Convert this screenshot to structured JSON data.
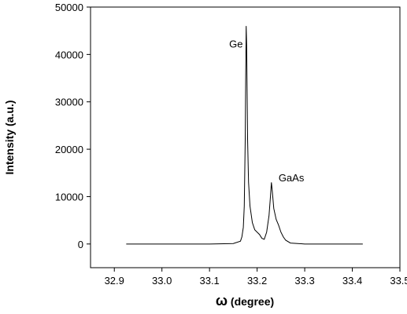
{
  "chart_data": {
    "type": "line",
    "xlabel_symbol": "ω",
    "xlabel_text": " (degree)",
    "ylabel": "Intensity (a.u.)",
    "xlim": [
      32.85,
      33.5
    ],
    "ylim": [
      -5000,
      50000
    ],
    "x_ticks": [
      32.9,
      33.0,
      33.1,
      33.2,
      33.3,
      33.4,
      33.5
    ],
    "x_tick_labels": [
      "32.9",
      "33.0",
      "33.1",
      "33.2",
      "33.3",
      "33.4",
      "33.5"
    ],
    "y_ticks": [
      0,
      10000,
      20000,
      30000,
      40000,
      50000
    ],
    "y_tick_labels": [
      "0",
      "10000",
      "20000",
      "30000",
      "40000",
      "50000"
    ],
    "grid": false,
    "annotations": [
      {
        "text": "Ge",
        "x": 33.17,
        "y": 41500
      },
      {
        "text": "GaAs",
        "x": 33.245,
        "y": 13200
      }
    ],
    "series": [
      {
        "x": [
          32.925,
          33.0,
          33.1,
          33.15,
          33.165,
          33.168,
          33.171,
          33.173,
          33.175,
          33.176,
          33.177,
          33.178,
          33.179,
          33.18,
          33.182,
          33.185,
          33.19,
          33.195,
          33.2,
          33.205,
          33.21,
          33.215,
          33.22,
          33.225,
          33.228,
          33.23,
          33.232,
          33.235,
          33.24,
          33.245,
          33.25,
          33.255,
          33.26,
          33.27,
          33.3,
          33.35,
          33.422
        ],
        "y": [
          0,
          0,
          0,
          100,
          600,
          1500,
          3500,
          8000,
          22000,
          35000,
          46000,
          42000,
          32000,
          22000,
          13000,
          8000,
          4500,
          3000,
          2500,
          2000,
          1200,
          1000,
          2500,
          6000,
          10000,
          13000,
          11000,
          7500,
          5200,
          4000,
          2500,
          1500,
          800,
          200,
          0,
          0,
          0
        ]
      }
    ]
  }
}
